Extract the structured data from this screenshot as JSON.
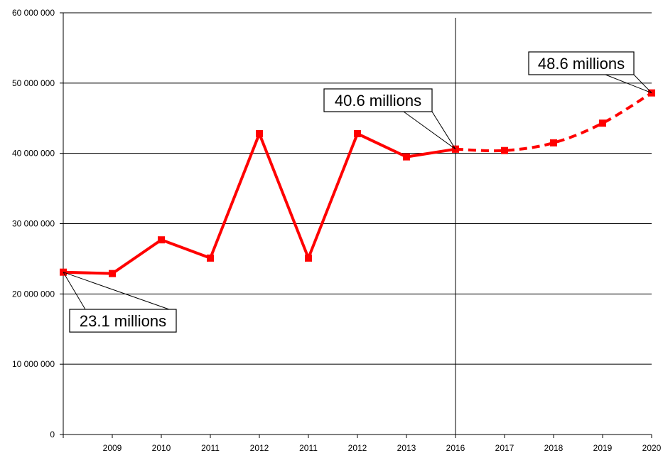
{
  "chart_data": {
    "type": "line",
    "title": "",
    "xlabel": "",
    "ylabel": "",
    "categories": [
      "",
      "2009",
      "2010",
      "2011",
      "2012",
      "2011",
      "2012",
      "2013",
      "2016",
      "2017",
      "2018",
      "2019",
      "2020"
    ],
    "series": [
      {
        "name": "",
        "style": "solid",
        "color": "#ff0000",
        "points": [
          {
            "i": 0,
            "y": 23100000
          },
          {
            "i": 1,
            "y": 22900000
          },
          {
            "i": 2,
            "y": 27700000
          },
          {
            "i": 3,
            "y": 25100000
          },
          {
            "i": 4,
            "y": 42800000
          },
          {
            "i": 5,
            "y": 25100000
          },
          {
            "i": 6,
            "y": 42800000
          },
          {
            "i": 7,
            "y": 39500000
          },
          {
            "i": 8,
            "y": 40600000
          }
        ]
      },
      {
        "name": "",
        "style": "dashed",
        "color": "#ff0000",
        "points": [
          {
            "i": 8,
            "y": 40600000
          },
          {
            "i": 9,
            "y": 40400000
          },
          {
            "i": 10,
            "y": 41500000
          },
          {
            "i": 11,
            "y": 44300000
          },
          {
            "i": 12,
            "y": 48600000
          }
        ]
      }
    ],
    "ylim": [
      0,
      60000000
    ],
    "yticks": [
      {
        "value": 0,
        "label": "0"
      },
      {
        "value": 10000000,
        "label": "10 000 000"
      },
      {
        "value": 20000000,
        "label": "20 000 000"
      },
      {
        "value": 30000000,
        "label": "30 000 000"
      },
      {
        "value": 40000000,
        "label": "40 000 000"
      },
      {
        "value": 50000000,
        "label": "50 000 000"
      },
      {
        "value": 60000000,
        "label": "60 000 000"
      }
    ],
    "grid": "horizontal",
    "legend": "none",
    "vertical_marker_index": 8,
    "annotations": [
      {
        "text": "23.1 millions",
        "target_index": 0,
        "target_y": 23100000,
        "position": "below-right"
      },
      {
        "text": "40.6 millions",
        "target_index": 8,
        "target_y": 40600000,
        "position": "above-left"
      },
      {
        "text": "48.6 millions",
        "target_index": 12,
        "target_y": 48600000,
        "position": "above-left"
      }
    ]
  }
}
